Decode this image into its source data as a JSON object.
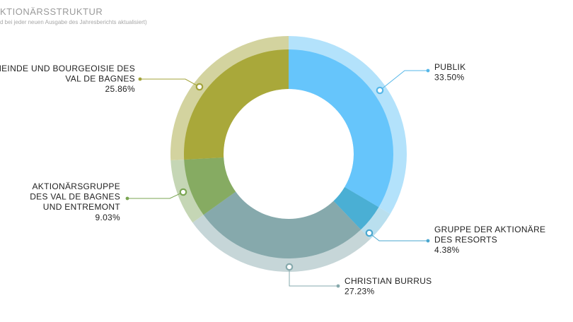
{
  "header": {
    "title": "KTIONÄRSSTRUKTUR",
    "subtitle": "d bei jeder neuen Ausgabe des Jahresberichts aktualisiert)"
  },
  "chart_data": {
    "type": "pie",
    "style": "donut",
    "unit": "%",
    "slices": [
      {
        "label_lines": [
          "PUBLIK"
        ],
        "value": 33.5,
        "value_label": "33.50%",
        "inner_color": "#66c5fb",
        "outer_color": "#b3e2fb",
        "connector_color": "#56b7e8"
      },
      {
        "label_lines": [
          "GRUPPE DER AKTIONÄRE",
          "DES RESORTS"
        ],
        "value": 4.38,
        "value_label": "4.38%",
        "inner_color": "#4aafd4",
        "outer_color": "#b9dfee",
        "connector_color": "#4aa7cf"
      },
      {
        "label_lines": [
          "CHRISTIAN BURRUS"
        ],
        "value": 27.23,
        "value_label": "27.23%",
        "inner_color": "#86a9ac",
        "outer_color": "#c6d6d8",
        "connector_color": "#86a9ac"
      },
      {
        "label_lines": [
          "AKTIONÄRSGRUPPE",
          "DES VAL DE BAGNES",
          "UND ENTREMONT"
        ],
        "value": 9.03,
        "value_label": "9.03%",
        "inner_color": "#86ab62",
        "outer_color": "#c5d6b5",
        "connector_color": "#7aa552"
      },
      {
        "label_lines": [
          "EMEINDE UND BOURGEOISIE DES",
          "VAL DE BAGNES"
        ],
        "value": 25.86,
        "value_label": "25.86%",
        "inner_color": "#a9a83a",
        "outer_color": "#d3d39f",
        "connector_color": "#a3a33a"
      }
    ]
  }
}
